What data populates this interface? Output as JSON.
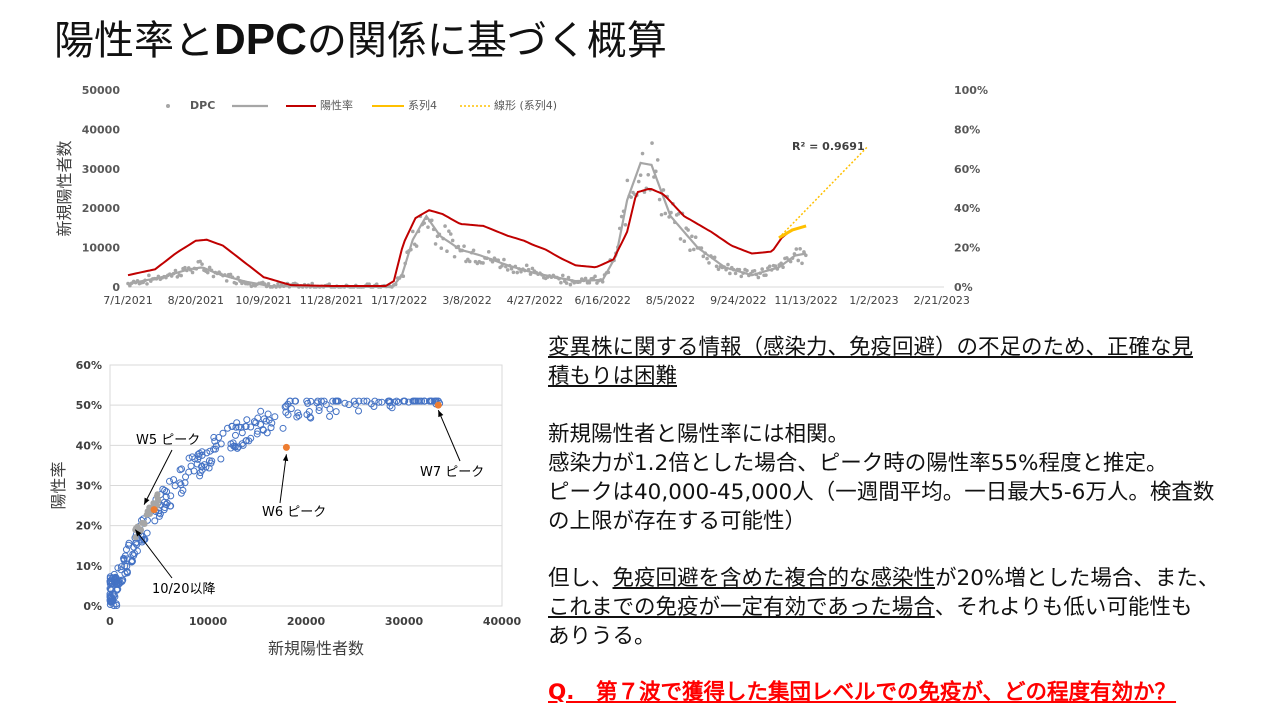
{
  "title": {
    "part1": "陽性率と",
    "part2": "DPC",
    "part3": "の関係に基づく概算"
  },
  "chart_data": [
    {
      "type": "scatter+line",
      "legend": {
        "position": "top",
        "items": [
          "DPC",
          "",
          "陽性率",
          "系列4",
          "線形 (系列4)"
        ]
      },
      "ylabel": "新規陽性者数",
      "y2label": "陽性率",
      "ylim": [
        0,
        50000
      ],
      "y2lim": [
        0,
        1
      ],
      "y_ticks": [
        "0",
        "10000",
        "20000",
        "30000",
        "40000",
        "50000"
      ],
      "y2_ticks": [
        "0%",
        "20%",
        "40%",
        "60%",
        "80%",
        "100%"
      ],
      "x_ticks": [
        "7/1/2021",
        "8/20/2021",
        "10/9/2021",
        "11/28/2021",
        "1/17/2022",
        "3/8/2022",
        "4/27/2022",
        "6/16/2022",
        "8/5/2022",
        "9/24/2022",
        "11/13/2022",
        "1/2/2023",
        "2/21/2023"
      ],
      "r2_label": "R² = 0.9691",
      "colors": {
        "dpc_points": "#a6a6a6",
        "dpc_line": "#a6a6a6",
        "positivity": "#c00000",
        "series4": "#ffc000",
        "trend": "#ffc000"
      },
      "positivity_series": [
        [
          0,
          0.06
        ],
        [
          20,
          0.09
        ],
        [
          35,
          0.17
        ],
        [
          50,
          0.235
        ],
        [
          58,
          0.24
        ],
        [
          70,
          0.21
        ],
        [
          85,
          0.13
        ],
        [
          100,
          0.05
        ],
        [
          120,
          0.01
        ],
        [
          150,
          0.005
        ],
        [
          190,
          0.005
        ],
        [
          196,
          0.03
        ],
        [
          203,
          0.22
        ],
        [
          212,
          0.35
        ],
        [
          222,
          0.39
        ],
        [
          232,
          0.37
        ],
        [
          245,
          0.32
        ],
        [
          262,
          0.31
        ],
        [
          280,
          0.26
        ],
        [
          292,
          0.235
        ],
        [
          300,
          0.21
        ],
        [
          308,
          0.19
        ],
        [
          318,
          0.15
        ],
        [
          330,
          0.11
        ],
        [
          345,
          0.1
        ],
        [
          358,
          0.14
        ],
        [
          368,
          0.28
        ],
        [
          375,
          0.48
        ],
        [
          385,
          0.5
        ],
        [
          395,
          0.47
        ],
        [
          410,
          0.36
        ],
        [
          430,
          0.28
        ],
        [
          445,
          0.21
        ],
        [
          460,
          0.17
        ],
        [
          475,
          0.18
        ],
        [
          482,
          0.25
        ],
        [
          495,
          0.32
        ],
        [
          503,
          0.31
        ]
      ],
      "dpc_line_series": [
        [
          0,
          800
        ],
        [
          25,
          2500
        ],
        [
          45,
          4500
        ],
        [
          55,
          5000
        ],
        [
          65,
          3500
        ],
        [
          85,
          1500
        ],
        [
          105,
          200
        ],
        [
          195,
          0
        ],
        [
          202,
          3000
        ],
        [
          210,
          12000
        ],
        [
          220,
          18000
        ],
        [
          230,
          13000
        ],
        [
          245,
          9500
        ],
        [
          260,
          8000
        ],
        [
          280,
          5500
        ],
        [
          300,
          3500
        ],
        [
          330,
          1500
        ],
        [
          350,
          1800
        ],
        [
          360,
          8000
        ],
        [
          368,
          22000
        ],
        [
          378,
          31500
        ],
        [
          386,
          31000
        ],
        [
          400,
          18000
        ],
        [
          420,
          10000
        ],
        [
          440,
          5000
        ],
        [
          460,
          3000
        ],
        [
          480,
          5000
        ],
        [
          492,
          8000
        ],
        [
          500,
          8500
        ]
      ],
      "series4_points": [
        [
          480,
          0.25
        ],
        [
          485,
          0.27
        ],
        [
          490,
          0.29
        ],
        [
          495,
          0.3
        ],
        [
          500,
          0.31
        ]
      ],
      "trend_line": [
        [
          480,
          0.25
        ],
        [
          545,
          0.71
        ]
      ],
      "x_range_days": [
        0,
        600
      ],
      "x_origin": "7/1/2021"
    },
    {
      "type": "scatter",
      "xlabel": "新規陽性者数",
      "ylabel": "陽性率",
      "xlim": [
        0,
        40000
      ],
      "ylim": [
        0,
        0.6
      ],
      "x_ticks": [
        "0",
        "10000",
        "20000",
        "30000",
        "40000"
      ],
      "y_ticks": [
        "0%",
        "10%",
        "20%",
        "30%",
        "40%",
        "50%",
        "60%"
      ],
      "annotations": [
        {
          "text": "W5 ピーク",
          "x": 4500,
          "y": 0.24
        },
        {
          "text": "W6 ピーク",
          "x": 18000,
          "y": 0.39
        },
        {
          "text": "W7 ピーク",
          "x": 33500,
          "y": 0.5
        },
        {
          "text": "10/20以降",
          "x": 3200,
          "y": 0.2
        }
      ],
      "colors": {
        "main": "#4472c4",
        "recent": "#a6a6a6",
        "peaks": "#ed7d31"
      },
      "peak_points": [
        [
          4500,
          0.24
        ],
        [
          18000,
          0.395
        ],
        [
          33500,
          0.5
        ]
      ],
      "recent_points_range": {
        "x": [
          2500,
          5000
        ],
        "y": [
          0.18,
          0.27
        ]
      },
      "main_points_description_free": true
    }
  ],
  "text": {
    "p1_line1": "変異株に関する情報（感染力、免疫回避）の不足のため、正確な見",
    "p1_line2": "積もりは困難",
    "p2_line1": "新規陽性者と陽性率には相関。",
    "p2_line2": "感染力が1.2倍とした場合、ピーク時の陽性率55%程度と推定。",
    "p2_line3": "ピークは40,000-45,000人（一週間平均。一日最大5-6万人。検査数",
    "p2_line4": "の上限が存在する可能性）",
    "p3_a": "但し、",
    "p3_b": "免疫回避を含めた複合的な感染性",
    "p3_c": "が20%増とした場合、また、",
    "p3_d": "これまでの免疫が一定有効であった場合",
    "p3_e": "、それよりも低い可能性も",
    "p3_f": "ありうる。",
    "question": "Q.　第７波で獲得した集団レベルでの免疫が、どの程度有効か？"
  }
}
